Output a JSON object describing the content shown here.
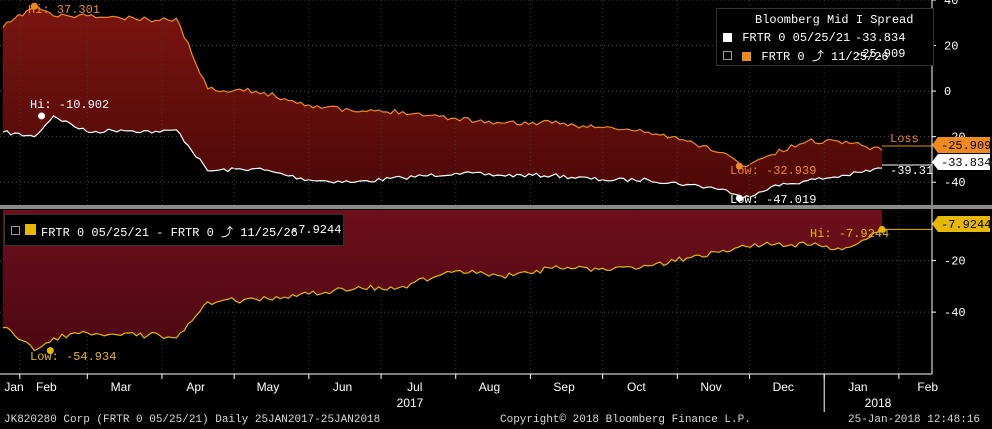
{
  "chart_data": [
    {
      "type": "area",
      "title": "Bloomberg Mid I Spread",
      "ylim": [
        -50,
        40
      ],
      "yticks": [
        40,
        20,
        0,
        -20,
        -40
      ],
      "ytick_labels": [
        "40",
        "20",
        "0",
        "-20",
        "-40"
      ],
      "legend_position": "top-right",
      "grid": true,
      "x": [
        "2017-01-25",
        "2017-02-07",
        "2017-02-15",
        "2017-03-01",
        "2017-03-15",
        "2017-03-31",
        "2017-04-07",
        "2017-04-20",
        "2017-05-10",
        "2017-06-01",
        "2017-06-20",
        "2017-07-10",
        "2017-08-01",
        "2017-08-20",
        "2017-09-10",
        "2017-10-01",
        "2017-10-20",
        "2017-11-05",
        "2017-11-20",
        "2017-11-28",
        "2017-12-10",
        "2017-12-25",
        "2018-01-10",
        "2018-01-25"
      ],
      "series": [
        {
          "name": "FRTR 0 05/25/21",
          "color": "#ffffff",
          "last_value": -33.834,
          "last_label": "-33.834",
          "values": [
            -18,
            -20,
            -10.902,
            -18,
            -17,
            -18,
            -17,
            -35,
            -34,
            -39,
            -40,
            -38,
            -36,
            -37,
            -37,
            -39,
            -39,
            -41,
            -43,
            -47.019,
            -42,
            -39.31,
            -37,
            -33.834
          ]
        },
        {
          "name": "FRTR 0 11/25/26",
          "color": "#f08a1e",
          "last_value": -25.909,
          "last_label": "-25.909",
          "values": [
            28,
            37.301,
            33,
            33,
            32,
            31,
            32,
            1,
            0,
            -6,
            -9,
            -9,
            -12,
            -14,
            -14,
            -16,
            -18,
            -22,
            -27,
            -32.939,
            -28,
            -22,
            -22,
            -25.909
          ]
        }
      ],
      "annotations": [
        {
          "text": "Hi: 37.301",
          "series": "FRTR 0 11/25/26",
          "x": "2017-02-07",
          "y": 37.301
        },
        {
          "text": "Hi: -10.902",
          "series": "FRTR 0 05/25/21",
          "x": "2017-02-15",
          "y": -10.902
        },
        {
          "text": "Low: -32.939",
          "series": "FRTR 0 11/25/26",
          "x": "2017-11-28",
          "y": -32.939
        },
        {
          "text": "Low: -47.019",
          "series": "FRTR 0 05/25/21",
          "x": "2017-11-28",
          "y": -47.019
        },
        {
          "text": "Loss",
          "x": "2018-01-25",
          "y": -20
        },
        {
          "text": "-39.31",
          "x": "2017-12-25",
          "y": -39.31
        }
      ]
    },
    {
      "type": "area",
      "ylim": [
        -60,
        0
      ],
      "yticks": [
        -20,
        -40
      ],
      "ytick_labels": [
        "-20",
        "-40"
      ],
      "grid": true,
      "legend_position": "top-left",
      "x": [
        "2017-01-25",
        "2017-02-07",
        "2017-02-15",
        "2017-03-01",
        "2017-03-15",
        "2017-03-31",
        "2017-04-07",
        "2017-04-20",
        "2017-05-10",
        "2017-06-01",
        "2017-06-20",
        "2017-07-10",
        "2017-08-01",
        "2017-08-20",
        "2017-09-10",
        "2017-10-01",
        "2017-10-20",
        "2017-11-05",
        "2017-11-20",
        "2017-11-28",
        "2017-12-10",
        "2017-12-25",
        "2018-01-10",
        "2018-01-25"
      ],
      "series": [
        {
          "name": "FRTR 0 05/25/21 - FRTR 0 11/25/26",
          "color": "#e6b800",
          "last_value": -7.9244,
          "last_label": "-7.9244",
          "values": [
            -46,
            -54.934,
            -50,
            -48,
            -49,
            -49,
            -50,
            -36,
            -35,
            -33,
            -31,
            -30,
            -24,
            -26,
            -23,
            -23,
            -22,
            -19,
            -16,
            -14.08,
            -14,
            -14,
            -15,
            -7.9244
          ]
        }
      ],
      "annotations": [
        {
          "text": "Low: -54.934",
          "x": "2017-02-07",
          "y": -54.934
        },
        {
          "text": "Hi: -7.9244",
          "x": "2018-01-25",
          "y": -7.9244
        }
      ]
    }
  ],
  "xaxis": {
    "months": [
      "Jan",
      "Feb",
      "Mar",
      "Apr",
      "May",
      "Jun",
      "Jul",
      "Aug",
      "Sep",
      "Oct",
      "Nov",
      "Dec",
      "Jan",
      "Feb"
    ],
    "years": [
      "2017",
      "2018"
    ]
  },
  "footer": {
    "left": "JK820280 Corp (FRTR 0 05/25/21)  Daily 25JAN2017-25JAN2018",
    "center": "Copyright© 2018 Bloomberg Finance L.P.",
    "right": "25-Jan-2018 12:48:16"
  },
  "legend_top": {
    "title": "Bloomberg Mid I Spread",
    "rows": [
      {
        "label": "FRTR 0 05/25/21",
        "value": "-33.834",
        "color": "#ffffff"
      },
      {
        "label": "FRTR 0 ⤴ 11/25/26",
        "value": "-25.909",
        "color": "#f08a1e"
      }
    ]
  },
  "legend_bottom": {
    "label": "FRTR 0 05/25/21 - FRTR 0 ⤴ 11/25/26",
    "value": "-7.9244",
    "color": "#e6b800"
  },
  "colors": {
    "fill_upper": "#6b0d0d",
    "fill_lower": "#7a1020",
    "grid": "#505050",
    "axis_text": "#ffffff",
    "last_tag_orange": "#f08a1e",
    "last_tag_white": "#ffffff",
    "last_tag_yellow": "#e6b800"
  }
}
